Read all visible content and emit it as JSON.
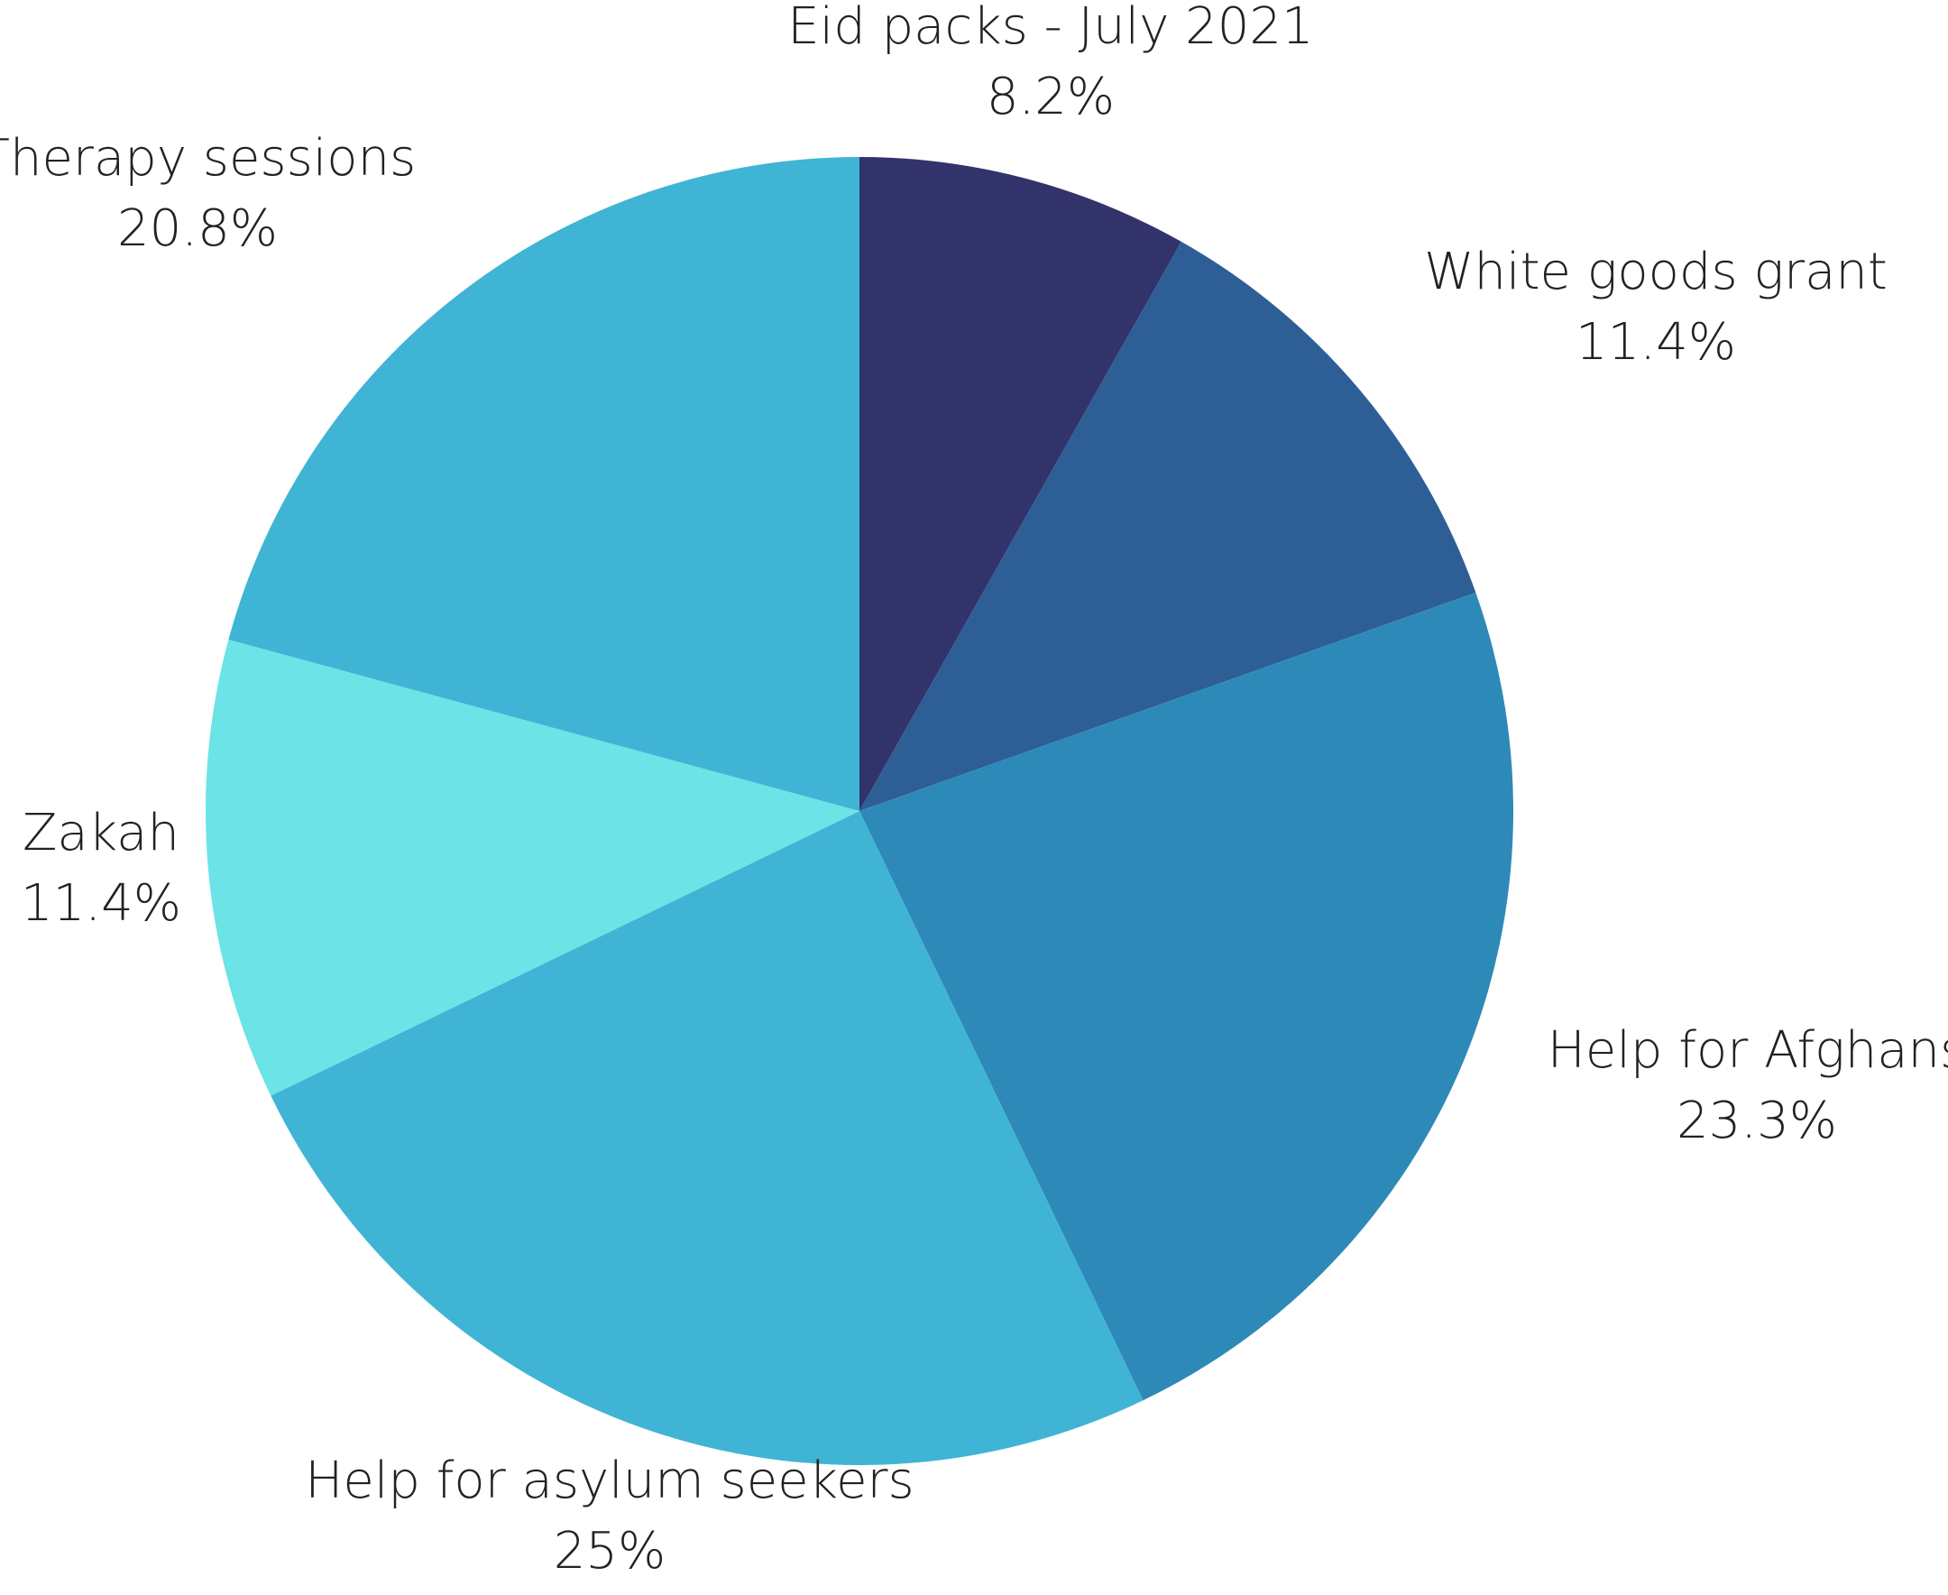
{
  "chart_data": {
    "type": "pie",
    "title": "",
    "slices": [
      {
        "label": "Eid packs - July 2021",
        "value": 8.2,
        "display": "8.2%",
        "color": "#33336b"
      },
      {
        "label": "White goods grant",
        "value": 11.4,
        "display": "11.4%",
        "color": "#2e5e96"
      },
      {
        "label": "Help for Afghans",
        "value": 23.3,
        "display": "23.3%",
        "color": "#2d8ab8"
      },
      {
        "label": "Help for asylum seekers",
        "value": 25,
        "display": "25%",
        "color": "#40b4d4"
      },
      {
        "label": "Zakah",
        "value": 11.4,
        "display": "11.4%",
        "color": "#6be3e7"
      },
      {
        "label": "Therapy sessions",
        "value": 20.8,
        "display": "20.8%",
        "color": "#40b4d4"
      }
    ],
    "start_angle": "12 o'clock",
    "direction": "clockwise",
    "legend": "none"
  }
}
